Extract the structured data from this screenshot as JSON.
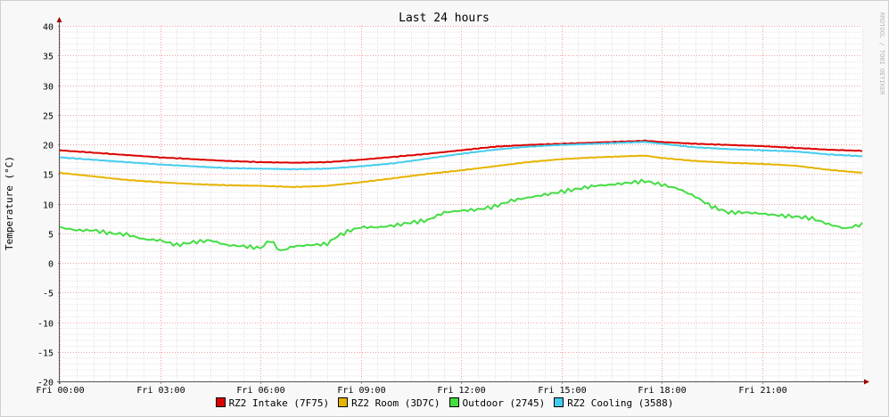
{
  "chart_data": {
    "type": "line",
    "title": "Last 24 hours",
    "ylabel": "Temperature (°C)",
    "xlabel": "",
    "watermark": "RRDTOOL / TOBI OETIKER",
    "ylim": [
      -20,
      40
    ],
    "y_ticks": [
      40,
      35,
      30,
      25,
      20,
      15,
      10,
      5,
      0,
      -5,
      -10,
      -15,
      -20
    ],
    "x_ticks": [
      "Fri 00:00",
      "Fri 03:00",
      "Fri 06:00",
      "Fri 09:00",
      "Fri 12:00",
      "Fri 15:00",
      "Fri 18:00",
      "Fri 21:00"
    ],
    "x_tick_hours": [
      0,
      3,
      6,
      9,
      12,
      15,
      18,
      21
    ],
    "xlim_hours": [
      0,
      24
    ],
    "grid": true,
    "legend_position": "bottom",
    "series": [
      {
        "name": "RZ2 Intake (7F75)",
        "color": "#dd0000",
        "x_hours": [
          0,
          1,
          2,
          3,
          4,
          5,
          6,
          7,
          8,
          9,
          10,
          11,
          12,
          13,
          14,
          15,
          16,
          17,
          17.5,
          18,
          19,
          20,
          21,
          22,
          23,
          24
        ],
        "values": [
          19.0,
          18.6,
          18.2,
          17.8,
          17.5,
          17.2,
          17.0,
          16.9,
          17.0,
          17.4,
          17.9,
          18.4,
          19.0,
          19.6,
          19.9,
          20.1,
          20.3,
          20.5,
          20.6,
          20.4,
          20.1,
          19.9,
          19.7,
          19.4,
          19.1,
          18.9
        ]
      },
      {
        "name": "RZ2 Room (3D7C)",
        "color": "#e6b400",
        "x_hours": [
          0,
          1,
          2,
          3,
          4,
          5,
          6,
          7,
          8,
          9,
          10,
          11,
          12,
          13,
          14,
          15,
          16,
          17,
          17.5,
          18,
          19,
          20,
          21,
          22,
          23,
          24
        ],
        "values": [
          15.2,
          14.6,
          14.0,
          13.6,
          13.3,
          13.1,
          13.0,
          12.8,
          13.0,
          13.6,
          14.3,
          15.0,
          15.6,
          16.3,
          17.0,
          17.5,
          17.8,
          18.0,
          18.1,
          17.7,
          17.2,
          16.9,
          16.7,
          16.4,
          15.7,
          15.2
        ]
      },
      {
        "name": "Outdoor (2745)",
        "color": "#44dd44",
        "x_hours": [
          0,
          0.5,
          1,
          1.5,
          2,
          2.5,
          3,
          3.5,
          4,
          4.5,
          5,
          5.5,
          6,
          6.3,
          6.6,
          7,
          7.5,
          8,
          8.3,
          8.7,
          9,
          9.5,
          10,
          10.5,
          11,
          11.5,
          12,
          12.5,
          13,
          13.5,
          14,
          14.5,
          15,
          15.5,
          16,
          16.5,
          17,
          17.5,
          18,
          18.5,
          19,
          19.5,
          20,
          20.5,
          21,
          21.5,
          22,
          22.5,
          23,
          23.5,
          24
        ],
        "values": [
          6.0,
          5.5,
          5.5,
          5.0,
          4.8,
          4.0,
          3.8,
          3.0,
          3.5,
          3.8,
          3.0,
          2.8,
          2.5,
          3.8,
          2.0,
          2.8,
          3.0,
          3.2,
          4.5,
          5.5,
          6.0,
          6.0,
          6.3,
          6.8,
          7.2,
          8.5,
          8.8,
          9.0,
          9.5,
          10.5,
          11.0,
          11.5,
          12.0,
          12.5,
          13.0,
          13.2,
          13.5,
          13.8,
          13.2,
          12.5,
          11.2,
          9.5,
          8.5,
          8.5,
          8.3,
          8.0,
          7.8,
          7.5,
          6.5,
          5.8,
          6.5
        ]
      },
      {
        "name": "RZ2 Cooling (3588)",
        "color": "#44ccee",
        "x_hours": [
          0,
          1,
          2,
          3,
          4,
          5,
          6,
          7,
          8,
          9,
          10,
          11,
          12,
          13,
          14,
          15,
          16,
          17,
          17.5,
          18,
          19,
          20,
          21,
          22,
          23,
          24
        ],
        "values": [
          17.8,
          17.4,
          17.0,
          16.6,
          16.3,
          16.0,
          15.9,
          15.8,
          15.9,
          16.3,
          16.8,
          17.6,
          18.4,
          19.1,
          19.6,
          19.9,
          20.1,
          20.3,
          20.4,
          20.1,
          19.5,
          19.2,
          19.0,
          18.8,
          18.3,
          18.0
        ]
      }
    ]
  }
}
